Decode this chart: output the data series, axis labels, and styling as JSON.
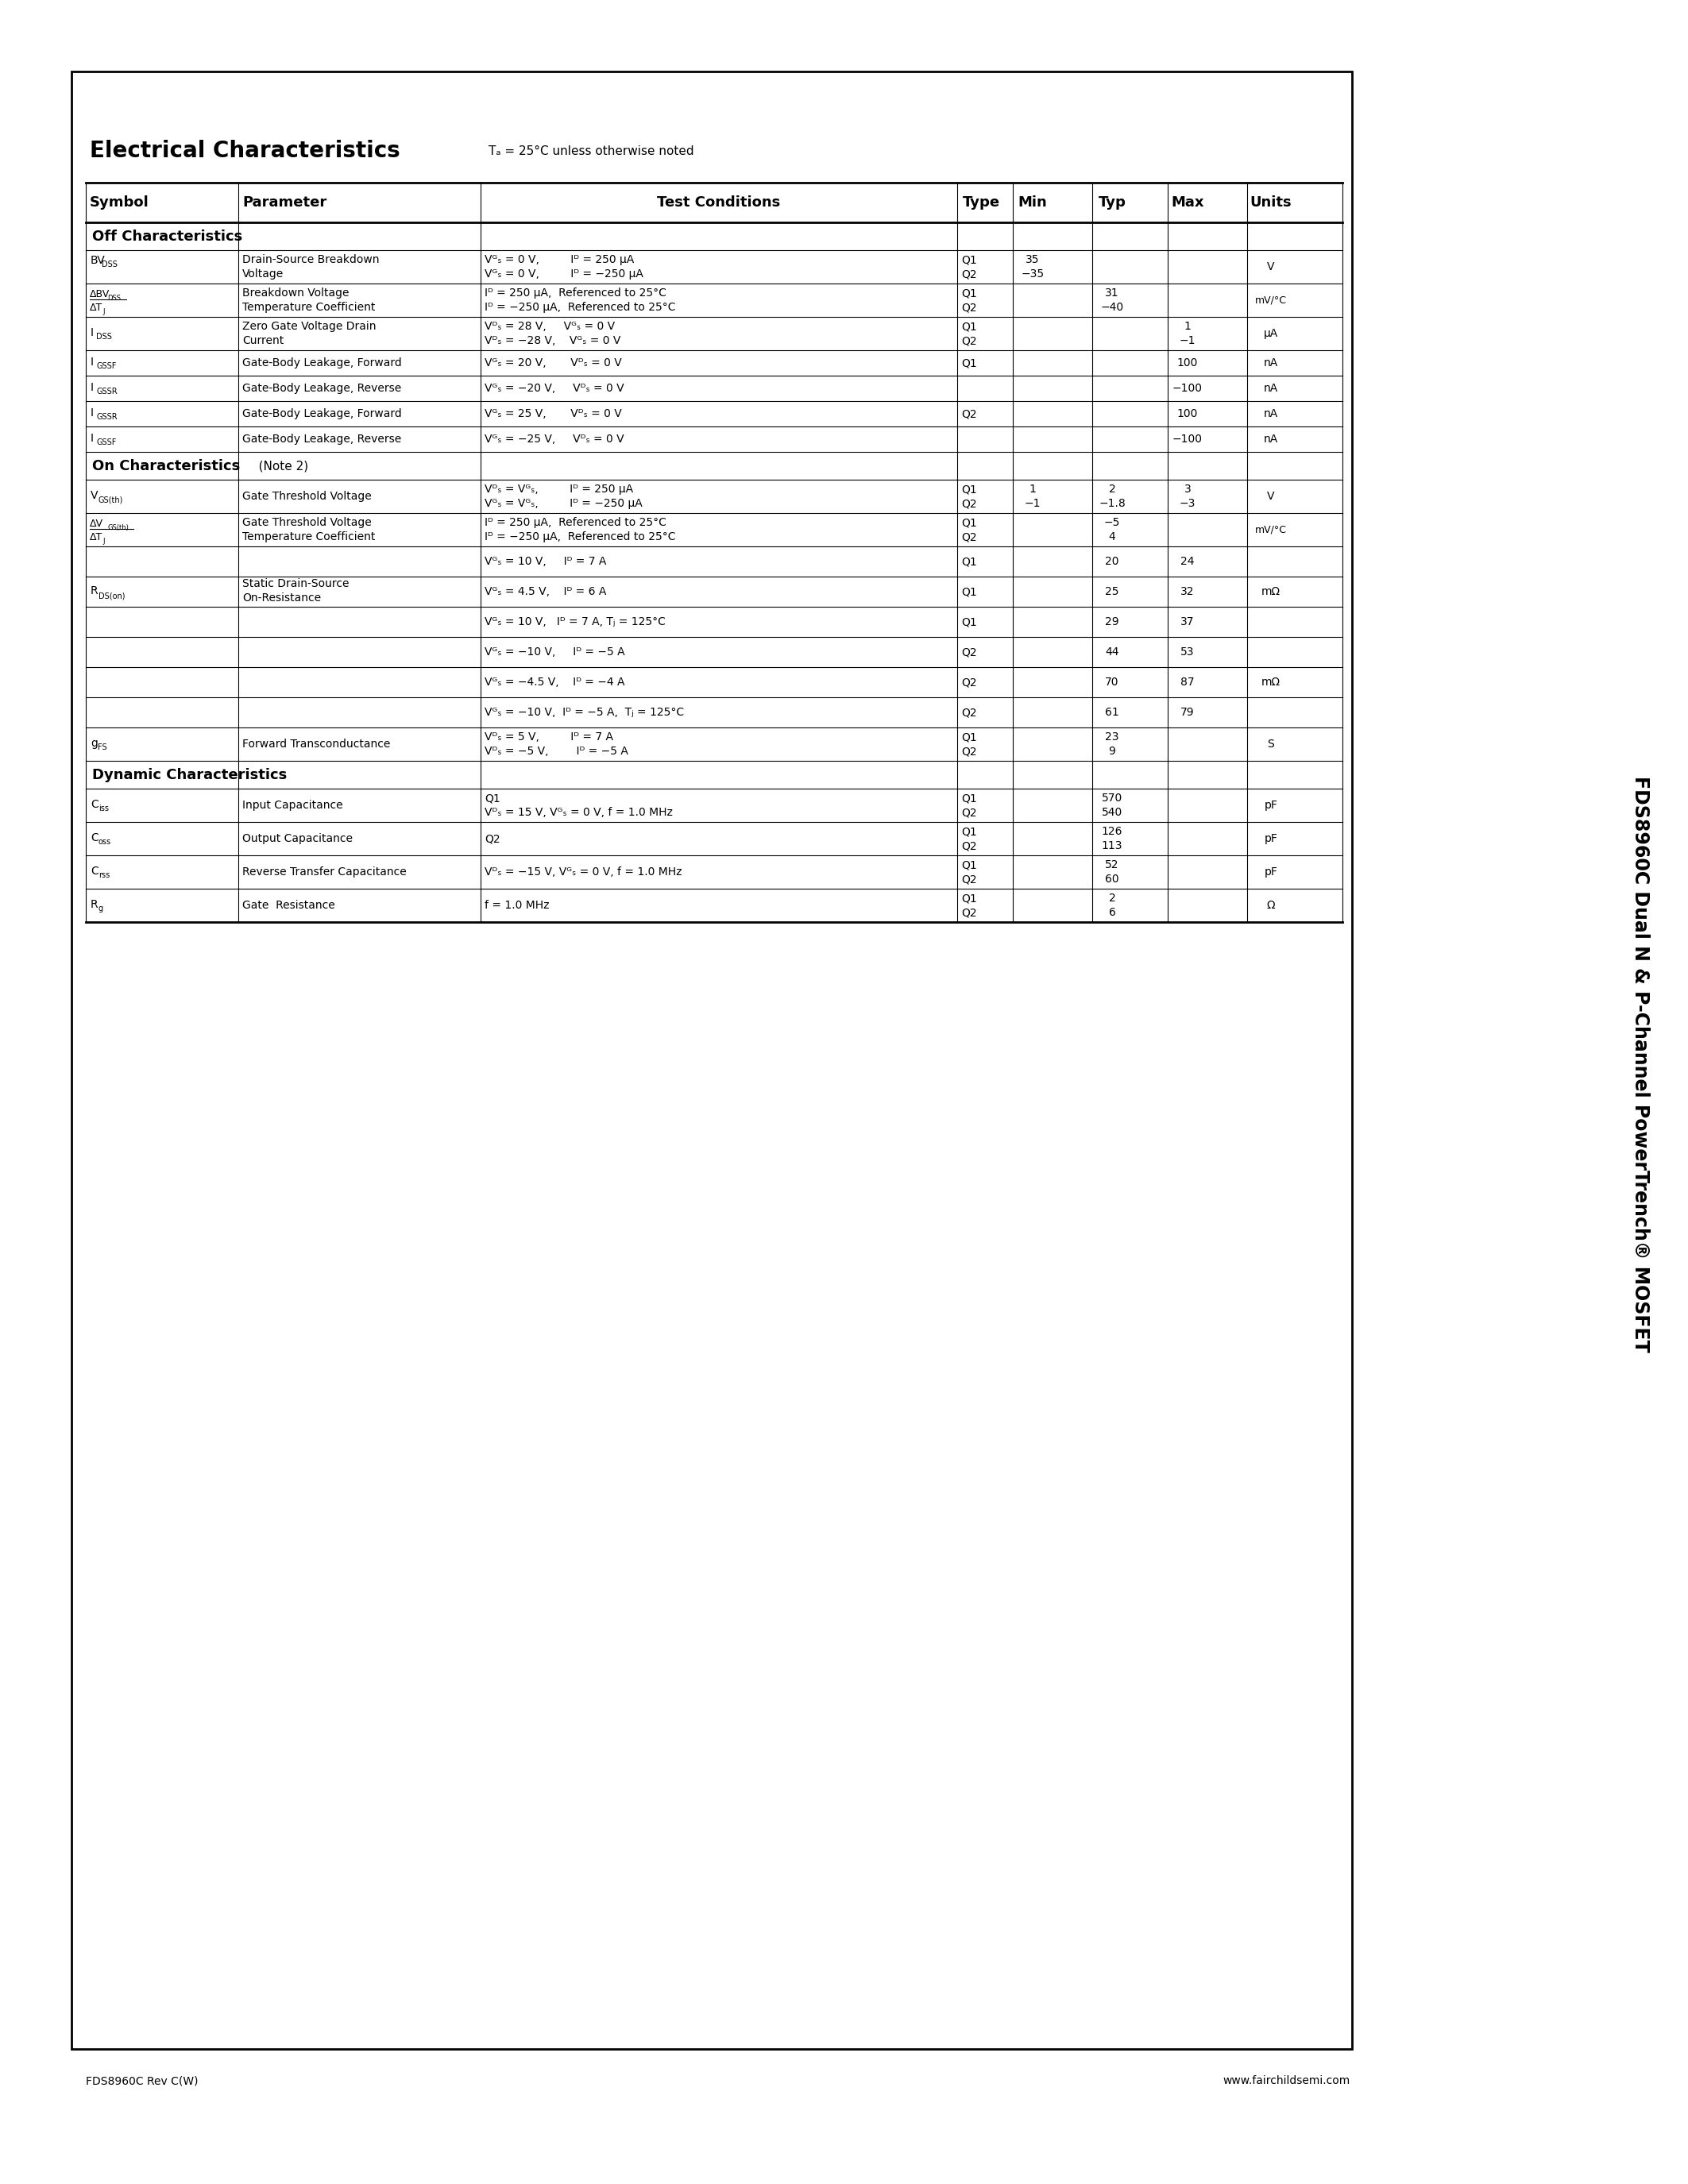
{
  "title": "Electrical Characteristics",
  "subtitle": "Tₐ = 25°C unless otherwise noted",
  "header_row": [
    "Symbol",
    "Parameter",
    "Test Conditions",
    "Type",
    "Min",
    "Typ",
    "Max",
    "Units"
  ],
  "page_label_bottom_left": "FDS8960C Rev C(W)",
  "page_label_bottom_right": "www.fairchildsemi.com",
  "side_label": "FDS8960C Dual N & P-Channel PowerTrench® MOSFET",
  "bg_color": "#ffffff",
  "text_color": "#000000",
  "border_color": "#000000"
}
